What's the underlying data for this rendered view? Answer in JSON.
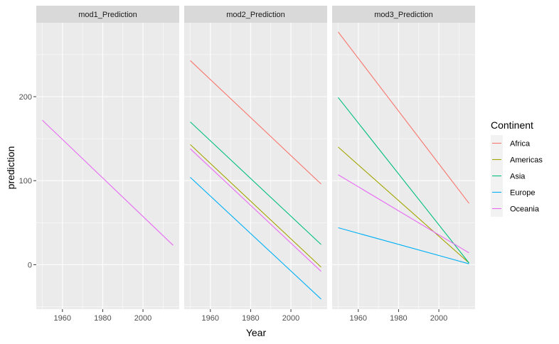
{
  "chart_data": {
    "type": "line",
    "xlabel": "Year",
    "ylabel": "prediction",
    "xlim": [
      1947,
      2018
    ],
    "ylim": [
      -53,
      288
    ],
    "x_ticks": [
      1960,
      1980,
      2000
    ],
    "y_ticks": [
      0,
      100,
      200
    ],
    "grid": true,
    "legend": {
      "title": "Continent",
      "placement": "right",
      "entries": [
        "Africa",
        "Americas",
        "Asia",
        "Europe",
        "Oceania"
      ]
    },
    "colors": {
      "Africa": "#F8766D",
      "Americas": "#A3A500",
      "Asia": "#00BF7D",
      "Europe": "#00B0F6",
      "Oceania": "#E76BF3"
    },
    "panels": [
      {
        "title": "mod1_Prediction",
        "series": [
          {
            "name": "Oceania",
            "x": [
              1950,
              2015
            ],
            "y": [
              172,
              23
            ]
          }
        ]
      },
      {
        "title": "mod2_Prediction",
        "series": [
          {
            "name": "Africa",
            "x": [
              1950,
              2015
            ],
            "y": [
              243,
              96
            ]
          },
          {
            "name": "Americas",
            "x": [
              1950,
              2015
            ],
            "y": [
              143,
              -3
            ]
          },
          {
            "name": "Asia",
            "x": [
              1950,
              2015
            ],
            "y": [
              170,
              24
            ]
          },
          {
            "name": "Europe",
            "x": [
              1950,
              2015
            ],
            "y": [
              104,
              -41
            ]
          },
          {
            "name": "Oceania",
            "x": [
              1950,
              2015
            ],
            "y": [
              138,
              -8
            ]
          }
        ]
      },
      {
        "title": "mod3_Prediction",
        "series": [
          {
            "name": "Africa",
            "x": [
              1950,
              2015
            ],
            "y": [
              277,
              73
            ]
          },
          {
            "name": "Americas",
            "x": [
              1950,
              2015
            ],
            "y": [
              140,
              2
            ]
          },
          {
            "name": "Asia",
            "x": [
              1950,
              2015
            ],
            "y": [
              199,
              2
            ]
          },
          {
            "name": "Europe",
            "x": [
              1950,
              2015
            ],
            "y": [
              44,
              1
            ]
          },
          {
            "name": "Oceania",
            "x": [
              1950,
              2015
            ],
            "y": [
              107,
              14
            ]
          }
        ]
      }
    ]
  }
}
